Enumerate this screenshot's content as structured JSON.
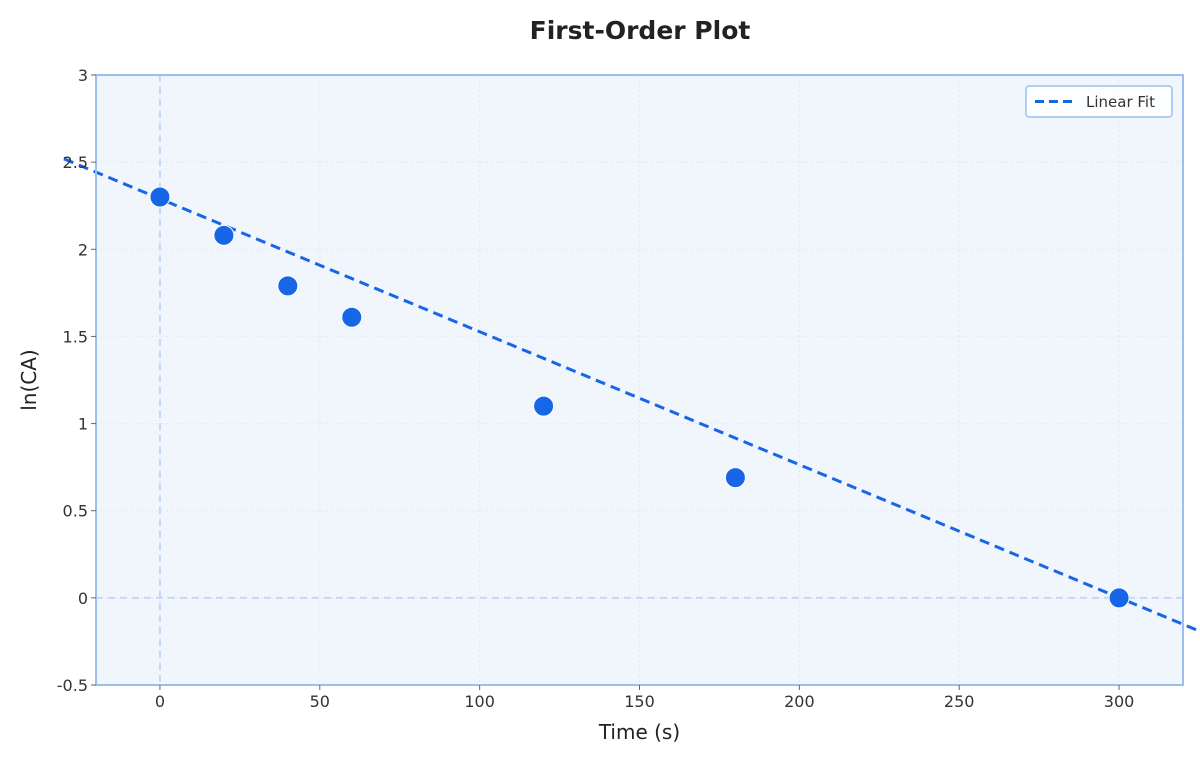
{
  "chart_data": {
    "type": "scatter",
    "title": "First-Order Plot",
    "xlabel": "Time (s)",
    "ylabel": "ln(CA)",
    "xlim": [
      -20,
      320
    ],
    "ylim": [
      -0.5,
      3
    ],
    "xticks": [
      0,
      50,
      100,
      150,
      200,
      250,
      300
    ],
    "yticks": [
      -0.5,
      0,
      0.5,
      1,
      1.5,
      2,
      2.5,
      3
    ],
    "xtick_labels": [
      "0",
      "50",
      "100",
      "150",
      "200",
      "250",
      "300"
    ],
    "ytick_labels": [
      "-0.5",
      "0",
      "0.5",
      "1",
      "1.5",
      "2",
      "2.5",
      "3"
    ],
    "grid": true,
    "points": {
      "x": [
        0,
        20,
        40,
        60,
        120,
        180,
        300
      ],
      "y": [
        2.3,
        2.08,
        1.79,
        1.61,
        1.1,
        0.69,
        0.0
      ]
    },
    "fit": {
      "name": "Linear Fit",
      "slope": -0.00763,
      "intercept": 2.29,
      "style": "dashed"
    },
    "reference_lines": {
      "x": 0,
      "y": 0
    },
    "legend_position": "top-right",
    "colors": {
      "marker": "#1766e8",
      "fit_line": "#1766e8",
      "plot_background": "#f1f6fd",
      "frame": "#9dbff0",
      "reference_line": "#c3d8f7",
      "grid": "#dfe8f5"
    }
  }
}
